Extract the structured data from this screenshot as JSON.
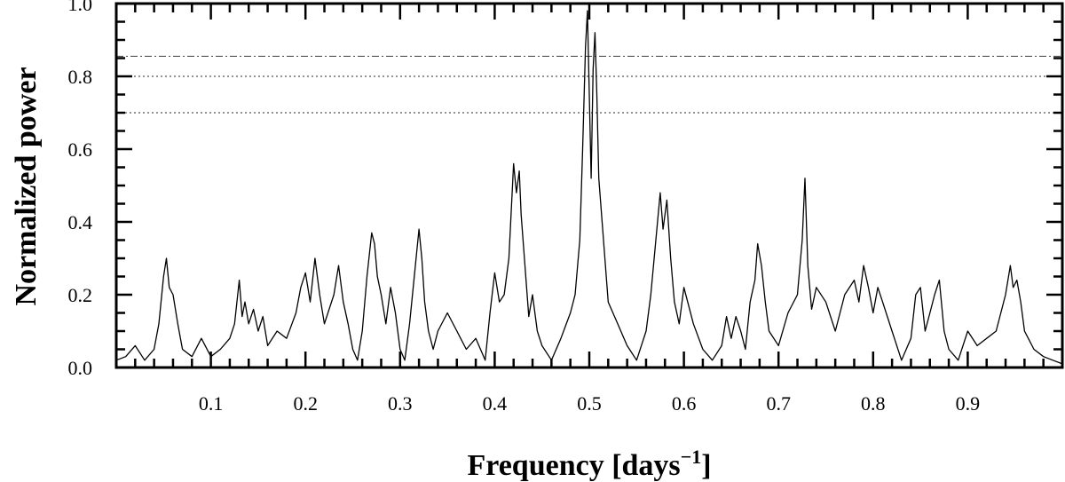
{
  "chart_data": {
    "type": "line",
    "xlabel": "Frequency [days",
    "xlabel_superscript": "−1",
    "xlabel_suffix": "]",
    "ylabel": "Normalized power",
    "xlim": [
      0.0,
      1.0
    ],
    "ylim": [
      0.0,
      1.0
    ],
    "x_ticks": [
      0.1,
      0.2,
      0.3,
      0.4,
      0.5,
      0.6,
      0.7,
      0.8,
      0.9
    ],
    "x_tick_labels": [
      "0.1",
      "0.2",
      "0.3",
      "0.4",
      "0.5",
      "0.6",
      "0.7",
      "0.8",
      "0.9"
    ],
    "y_ticks": [
      0.0,
      0.2,
      0.4,
      0.6,
      0.8,
      1.0
    ],
    "y_tick_labels": [
      "0.0",
      "0.2",
      "0.4",
      "0.6",
      "0.8",
      "1.0"
    ],
    "grid": false,
    "reference_lines": [
      {
        "y": 0.855,
        "style": "dash-dot"
      },
      {
        "y": 0.8,
        "style": "dotted"
      },
      {
        "y": 0.7,
        "style": "dotted"
      }
    ],
    "series": [
      {
        "x": [
          0.0,
          0.01,
          0.02,
          0.03,
          0.04,
          0.045,
          0.05,
          0.053,
          0.056,
          0.06,
          0.065,
          0.07,
          0.08,
          0.09,
          0.1,
          0.11,
          0.12,
          0.125,
          0.13,
          0.133,
          0.136,
          0.14,
          0.145,
          0.15,
          0.155,
          0.16,
          0.17,
          0.18,
          0.19,
          0.195,
          0.2,
          0.205,
          0.21,
          0.215,
          0.22,
          0.23,
          0.235,
          0.24,
          0.245,
          0.25,
          0.255,
          0.26,
          0.265,
          0.27,
          0.273,
          0.276,
          0.28,
          0.285,
          0.29,
          0.295,
          0.3,
          0.305,
          0.31,
          0.315,
          0.32,
          0.323,
          0.326,
          0.33,
          0.335,
          0.34,
          0.35,
          0.36,
          0.37,
          0.38,
          0.39,
          0.395,
          0.4,
          0.405,
          0.41,
          0.415,
          0.42,
          0.423,
          0.426,
          0.428,
          0.432,
          0.436,
          0.44,
          0.445,
          0.45,
          0.46,
          0.47,
          0.48,
          0.485,
          0.49,
          0.493,
          0.496,
          0.498,
          0.5,
          0.502,
          0.504,
          0.506,
          0.508,
          0.51,
          0.515,
          0.52,
          0.53,
          0.54,
          0.55,
          0.56,
          0.565,
          0.57,
          0.575,
          0.578,
          0.582,
          0.586,
          0.59,
          0.595,
          0.6,
          0.61,
          0.62,
          0.63,
          0.64,
          0.645,
          0.65,
          0.655,
          0.66,
          0.665,
          0.67,
          0.675,
          0.678,
          0.682,
          0.686,
          0.69,
          0.7,
          0.71,
          0.72,
          0.725,
          0.728,
          0.731,
          0.735,
          0.74,
          0.75,
          0.76,
          0.77,
          0.78,
          0.785,
          0.79,
          0.795,
          0.8,
          0.805,
          0.81,
          0.82,
          0.83,
          0.84,
          0.845,
          0.85,
          0.855,
          0.86,
          0.865,
          0.87,
          0.875,
          0.88,
          0.89,
          0.9,
          0.91,
          0.92,
          0.93,
          0.935,
          0.94,
          0.945,
          0.948,
          0.952,
          0.956,
          0.96,
          0.97,
          0.98,
          0.99,
          1.0
        ],
        "y": [
          0.02,
          0.03,
          0.06,
          0.02,
          0.05,
          0.12,
          0.25,
          0.3,
          0.22,
          0.2,
          0.12,
          0.05,
          0.03,
          0.08,
          0.03,
          0.05,
          0.08,
          0.12,
          0.24,
          0.14,
          0.18,
          0.12,
          0.16,
          0.1,
          0.14,
          0.06,
          0.1,
          0.08,
          0.15,
          0.22,
          0.26,
          0.18,
          0.3,
          0.2,
          0.12,
          0.2,
          0.28,
          0.18,
          0.12,
          0.05,
          0.02,
          0.1,
          0.25,
          0.37,
          0.34,
          0.25,
          0.2,
          0.12,
          0.22,
          0.15,
          0.05,
          0.02,
          0.12,
          0.25,
          0.38,
          0.3,
          0.18,
          0.1,
          0.05,
          0.1,
          0.15,
          0.1,
          0.05,
          0.08,
          0.02,
          0.15,
          0.26,
          0.18,
          0.2,
          0.3,
          0.56,
          0.48,
          0.54,
          0.42,
          0.28,
          0.14,
          0.2,
          0.1,
          0.06,
          0.02,
          0.08,
          0.15,
          0.2,
          0.35,
          0.6,
          0.88,
          0.98,
          0.75,
          0.52,
          0.82,
          0.92,
          0.75,
          0.52,
          0.35,
          0.18,
          0.12,
          0.06,
          0.02,
          0.1,
          0.2,
          0.34,
          0.48,
          0.38,
          0.46,
          0.3,
          0.18,
          0.12,
          0.22,
          0.12,
          0.05,
          0.02,
          0.06,
          0.14,
          0.08,
          0.14,
          0.1,
          0.05,
          0.18,
          0.24,
          0.34,
          0.28,
          0.18,
          0.1,
          0.06,
          0.15,
          0.2,
          0.35,
          0.52,
          0.28,
          0.16,
          0.22,
          0.18,
          0.1,
          0.2,
          0.24,
          0.18,
          0.28,
          0.22,
          0.15,
          0.22,
          0.18,
          0.1,
          0.02,
          0.08,
          0.2,
          0.22,
          0.1,
          0.15,
          0.2,
          0.24,
          0.1,
          0.05,
          0.02,
          0.1,
          0.06,
          0.08,
          0.1,
          0.15,
          0.2,
          0.28,
          0.22,
          0.24,
          0.18,
          0.1,
          0.05,
          0.03,
          0.02,
          0.01
        ]
      }
    ]
  }
}
